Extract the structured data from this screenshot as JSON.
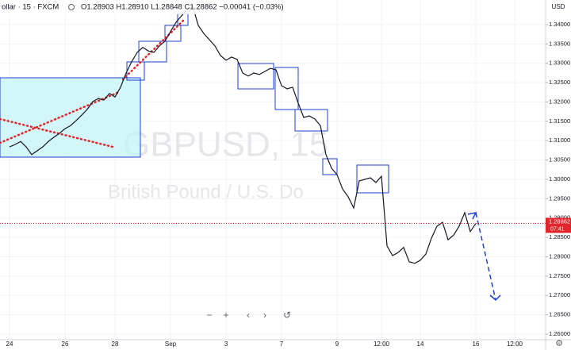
{
  "chart_data": {
    "type": "line",
    "header": {
      "symbol": "ollar · 15 · FXCM",
      "ohlc": "O1.28903 H1.28910 L1.28848 C1.28862 −0.00041 (−0.03%)"
    },
    "watermark": {
      "symbol": "GBPUSD, 15",
      "description": "British Pound / U.S. Do"
    },
    "currency": "USD",
    "current_price": {
      "value": 1.28862,
      "label": "1.28862"
    },
    "countdown": "07:41",
    "categories": [
      "24",
      null,
      null,
      null,
      null,
      null,
      null,
      null,
      null,
      null,
      "26",
      null,
      null,
      null,
      null,
      null,
      null,
      null,
      null,
      "28",
      null,
      null,
      null,
      null,
      null,
      null,
      null,
      null,
      null,
      "Sep",
      null,
      null,
      null,
      null,
      null,
      null,
      null,
      null,
      null,
      "3",
      null,
      null,
      null,
      null,
      null,
      null,
      null,
      null,
      null,
      "7",
      null,
      null,
      null,
      null,
      null,
      null,
      null,
      null,
      null,
      "9",
      null,
      null,
      null,
      null,
      null,
      null,
      null,
      "12:00",
      null,
      null,
      null,
      null,
      null,
      null,
      "14",
      null,
      null,
      null,
      null,
      null,
      null,
      null,
      null,
      null,
      "16",
      null,
      null,
      null,
      null,
      null,
      null,
      "12:00"
    ],
    "series": [
      {
        "color": "#131722",
        "values": [
          1.3084,
          1.309,
          1.3098,
          1.3084,
          1.3064,
          1.3074,
          1.3084,
          1.3098,
          1.3109,
          1.3119,
          1.3131,
          1.3139,
          1.3152,
          1.3166,
          1.3181,
          1.3201,
          1.3209,
          1.3205,
          1.3222,
          1.3213,
          1.3238,
          1.3275,
          1.3304,
          1.3328,
          1.3341,
          1.3332,
          1.3328,
          1.3345,
          1.3357,
          1.3382,
          1.3406,
          1.3423,
          1.3439,
          1.3447,
          1.3398,
          1.3377,
          1.3361,
          1.3345,
          1.332,
          1.3308,
          1.3316,
          1.331,
          1.3275,
          1.3267,
          1.3275,
          1.3271,
          1.3279,
          1.3287,
          1.3283,
          1.3242,
          1.3234,
          1.3238,
          1.3197,
          1.316,
          1.3164,
          1.3156,
          1.3139,
          1.3064,
          1.3029,
          1.3012,
          1.2975,
          1.2955,
          1.2926,
          1.2996,
          1.3,
          1.3004,
          1.2992,
          1.3008,
          1.2828,
          1.2803,
          1.2811,
          1.2824,
          1.2787,
          1.2783,
          1.2791,
          1.2807,
          1.2848,
          1.2879,
          1.2889,
          1.2844,
          1.2856,
          1.2879,
          1.2914,
          1.2865,
          1.2886,
          null,
          null,
          null,
          null,
          null,
          null,
          null
        ]
      }
    ],
    "ylim": [
      1.25815,
      1.34636
    ],
    "yticks": [
      {
        "value": 1.34,
        "label": "1.34000"
      },
      {
        "value": 1.335,
        "label": "1.33500"
      },
      {
        "value": 1.33,
        "label": "1.33000"
      },
      {
        "value": 1.325,
        "label": "1.32500"
      },
      {
        "value": 1.32,
        "label": "1.32000"
      },
      {
        "value": 1.315,
        "label": "1.31500"
      },
      {
        "value": 1.31,
        "label": "1.31000"
      },
      {
        "value": 1.305,
        "label": "1.30500"
      },
      {
        "value": 1.3,
        "label": "1.30000"
      },
      {
        "value": 1.295,
        "label": "1.29500"
      },
      {
        "value": 1.29,
        "label": "1.29000"
      },
      {
        "value": 1.285,
        "label": "1.28500"
      },
      {
        "value": 1.28,
        "label": "1.28000"
      },
      {
        "value": 1.275,
        "label": "1.27500"
      },
      {
        "value": 1.27,
        "label": "1.27000"
      },
      {
        "value": 1.265,
        "label": "1.26500"
      },
      {
        "value": 1.26,
        "label": "1.26000"
      }
    ],
    "grid": true
  }
}
